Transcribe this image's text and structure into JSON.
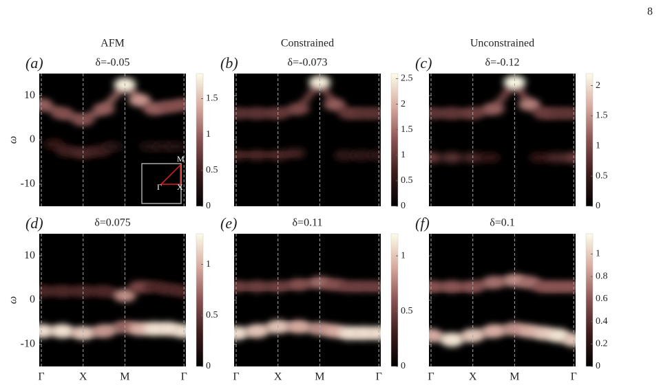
{
  "chart_data": {
    "type": "heatmap",
    "page_number": "8",
    "column_titles": [
      "AFM",
      "Constrained",
      "Unconstrained"
    ],
    "ylabel": "ω",
    "ylim": [
      -15,
      15
    ],
    "yticks": [
      -10,
      0,
      10
    ],
    "xlim": [
      -0.05,
      3.46
    ],
    "xticks": [
      {
        "value": 0,
        "label": "Γ"
      },
      {
        "value": 1,
        "label": "X"
      },
      {
        "value": 2,
        "label": "M"
      },
      {
        "value": 3.414,
        "label": "Γ"
      }
    ],
    "inset": {
      "labels": [
        "Γ",
        "X",
        "M"
      ]
    },
    "panels": [
      {
        "label": "(a)",
        "subtitle": "δ=-0.05",
        "clim": [
          0,
          1.85
        ],
        "cticks": [
          0,
          0.5,
          1,
          1.5
        ],
        "bands": [
          {
            "k": [
              0,
              0.5,
              1,
              1.5,
              2,
              2.35,
              2.7,
              3.05,
              3.414
            ],
            "omega": [
              8,
              6,
              4.5,
              7,
              12.5,
              9,
              7,
              7.5,
              8
            ],
            "weight": [
              1,
              0.9,
              0.9,
              1,
              1.8,
              1.3,
              1,
              0.9,
              0.9
            ]
          },
          {
            "k": [
              0.3,
              0.6,
              1,
              1.4,
              1.7
            ],
            "omega": [
              -1,
              -2.5,
              -3,
              -2.5,
              -1.5
            ],
            "weight": [
              0.4,
              0.5,
              0.6,
              0.5,
              0.3
            ]
          },
          {
            "k": [
              2.6,
              2.9,
              3.2
            ],
            "omega": [
              -1.5,
              -1.5,
              -1.5
            ],
            "weight": [
              0.3,
              0.3,
              0.3
            ]
          }
        ]
      },
      {
        "label": "(b)",
        "subtitle": "δ=-0.073",
        "clim": [
          0,
          2.6
        ],
        "cticks": [
          0,
          0.5,
          1,
          1.5,
          2,
          2.5
        ],
        "bands": [
          {
            "k": [
              0,
              0.5,
              1,
              1.5,
              2,
              2.35,
              2.7,
              3.05,
              3.414
            ],
            "omega": [
              6,
              6,
              6,
              7,
              13,
              8,
              6,
              6,
              6
            ],
            "weight": [
              0.9,
              0.9,
              1,
              1.2,
              2.5,
              1.4,
              1,
              0.9,
              0.9
            ]
          },
          {
            "k": [
              0,
              0.5,
              1,
              1.4
            ],
            "omega": [
              -3.5,
              -3.5,
              -3.5,
              -3
            ],
            "weight": [
              0.8,
              0.8,
              0.8,
              0.7
            ]
          },
          {
            "k": [
              2.6,
              3,
              3.414
            ],
            "omega": [
              -3.5,
              -3.5,
              -3.5
            ],
            "weight": [
              0.6,
              0.6,
              0.6
            ]
          }
        ]
      },
      {
        "label": "(c)",
        "subtitle": "δ=-0.12",
        "clim": [
          0,
          2.2
        ],
        "cticks": [
          0,
          0.5,
          1,
          1.5,
          2
        ],
        "bands": [
          {
            "k": [
              0,
              0.5,
              1,
              1.5,
              2,
              2.35,
              2.7,
              3.05,
              3.414
            ],
            "omega": [
              6,
              6,
              6,
              7,
              13,
              8,
              6,
              6,
              6
            ],
            "weight": [
              0.8,
              0.8,
              0.9,
              1.2,
              2.2,
              1.4,
              0.9,
              0.8,
              0.8
            ]
          },
          {
            "k": [
              0,
              0.5,
              1,
              1.4
            ],
            "omega": [
              -4,
              -4,
              -4,
              -4
            ],
            "weight": [
              0.9,
              0.8,
              0.7,
              0.5
            ]
          },
          {
            "k": [
              2.6,
              3,
              3.414
            ],
            "omega": [
              -4,
              -4,
              -4
            ],
            "weight": [
              0.5,
              0.7,
              0.9
            ]
          }
        ]
      },
      {
        "label": "(d)",
        "subtitle": "δ=0.075",
        "clim": [
          0,
          1.3
        ],
        "cticks": [
          0,
          0.5,
          1
        ],
        "bands": [
          {
            "k": [
              0,
              0.5,
              1,
              1.5,
              2,
              2.35,
              2.7,
              3.05,
              3.414
            ],
            "omega": [
              -7,
              -7,
              -7.5,
              -7,
              -6,
              -6.5,
              -6.5,
              -6.5,
              -7
            ],
            "weight": [
              1.2,
              1.2,
              1.1,
              0.9,
              0.7,
              1,
              1.2,
              1.2,
              1.2
            ]
          },
          {
            "k": [
              0,
              0.5,
              1,
              1.5,
              2,
              2.35,
              2.7,
              3.05,
              3.414
            ],
            "omega": [
              2,
              2,
              2,
              2,
              1,
              3,
              3,
              2.5,
              2
            ],
            "weight": [
              0.4,
              0.4,
              0.4,
              0.4,
              0.9,
              0.6,
              0.4,
              0.4,
              0.4
            ]
          }
        ]
      },
      {
        "label": "(e)",
        "subtitle": "δ=0.11",
        "clim": [
          0,
          1.2
        ],
        "cticks": [
          0,
          0.5,
          1
        ],
        "bands": [
          {
            "k": [
              0,
              0.5,
              1,
              1.5,
              2,
              2.35,
              2.7,
              3.05,
              3.414
            ],
            "omega": [
              -7.5,
              -7,
              -6,
              -6,
              -6.5,
              -7,
              -7.5,
              -7.5,
              -7.5
            ],
            "weight": [
              1.1,
              1,
              1,
              0.9,
              0.8,
              0.9,
              1.1,
              1.1,
              1.1
            ]
          },
          {
            "k": [
              0,
              0.5,
              1,
              1.5,
              2,
              2.35,
              2.7,
              3.05,
              3.414
            ],
            "omega": [
              3,
              3,
              3,
              3.5,
              4,
              3.5,
              3,
              3,
              3
            ],
            "weight": [
              0.5,
              0.5,
              0.5,
              0.6,
              0.7,
              0.6,
              0.5,
              0.5,
              0.5
            ]
          }
        ]
      },
      {
        "label": "(f)",
        "subtitle": "δ=0.1",
        "clim": [
          0,
          1.18
        ],
        "cticks": [
          0,
          0.2,
          0.4,
          0.6,
          0.8,
          1
        ],
        "bands": [
          {
            "k": [
              0,
              0.5,
              1,
              1.5,
              2,
              2.35,
              2.7,
              3.05,
              3.414
            ],
            "omega": [
              -8,
              -9,
              -8,
              -7,
              -6.5,
              -7,
              -7.5,
              -8,
              -9
            ],
            "weight": [
              0.9,
              1.1,
              1,
              0.9,
              0.8,
              0.9,
              1,
              1.1,
              1
            ]
          },
          {
            "k": [
              0,
              0.5,
              1,
              1.5,
              2,
              2.35,
              2.7,
              3.05,
              3.414
            ],
            "omega": [
              3,
              3,
              3,
              4,
              4.5,
              4,
              3,
              3,
              3
            ],
            "weight": [
              0.6,
              0.6,
              0.6,
              0.7,
              0.8,
              0.7,
              0.6,
              0.6,
              0.6
            ]
          }
        ]
      }
    ]
  }
}
